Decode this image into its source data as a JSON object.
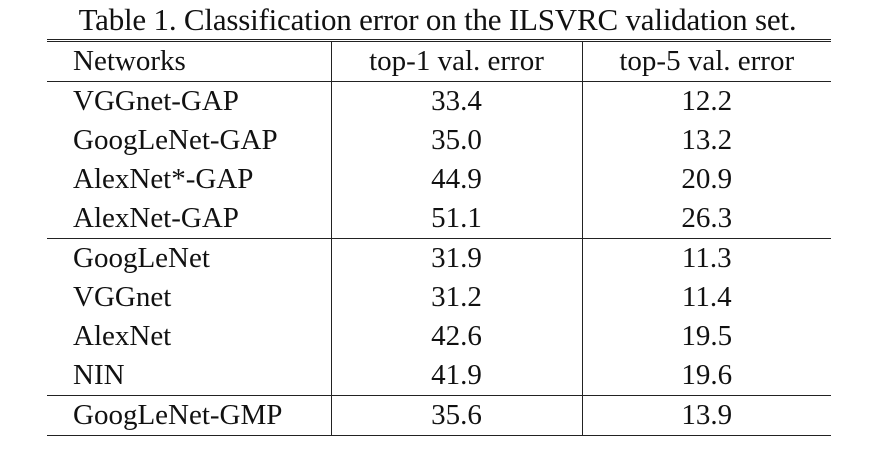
{
  "caption": "Table 1. Classification error on the ILSVRC validation set.",
  "table": {
    "headers": [
      "Networks",
      "top-1 val. error",
      "top-5 val. error"
    ],
    "groups": [
      [
        [
          "VGGnet-GAP",
          "33.4",
          "12.2"
        ],
        [
          "GoogLeNet-GAP",
          "35.0",
          "13.2"
        ],
        [
          "AlexNet*-GAP",
          "44.9",
          "20.9"
        ],
        [
          "AlexNet-GAP",
          "51.1",
          "26.3"
        ]
      ],
      [
        [
          "GoogLeNet",
          "31.9",
          "11.3"
        ],
        [
          "VGGnet",
          "31.2",
          "11.4"
        ],
        [
          "AlexNet",
          "42.6",
          "19.5"
        ],
        [
          "NIN",
          "41.9",
          "19.6"
        ]
      ],
      [
        [
          "GoogLeNet-GMP",
          "35.6",
          "13.9"
        ]
      ]
    ]
  }
}
